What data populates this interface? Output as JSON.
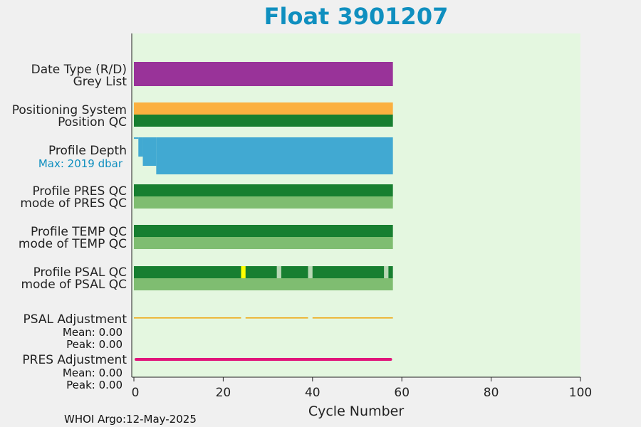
{
  "title": "Float 3901207",
  "footer": "WHOI Argo:12-May-2025",
  "colors": {
    "title": "#0f8fbf",
    "plot_bg": "#e4f7e0",
    "magenta": "#993399",
    "orange": "#fbb040",
    "dark_green": "#177f30",
    "light_green": "#7fbd71",
    "blue": "#41a9d2",
    "max_label": "#0f8fbf",
    "yellow": "#ffff00",
    "psal_gap": "#b9d8b5",
    "psal_adj": "#f0a000",
    "pres_adj": "#e0157a"
  },
  "chart_data": {
    "type": "bar",
    "xlabel": "Cycle Number",
    "xlim": [
      0,
      100
    ],
    "xticks": [
      "0",
      "20",
      "40",
      "60",
      "80",
      "100"
    ],
    "rows": [
      {
        "label": "Date Type (R/D)",
        "cycles": [
          0,
          58
        ],
        "color": "magenta"
      },
      {
        "label": "Grey List",
        "cycles": [
          0,
          58
        ],
        "color": "magenta"
      },
      {
        "label": "Positioning System",
        "cycles": [
          0,
          58
        ],
        "color": "orange"
      },
      {
        "label": "Position QC",
        "cycles": [
          0,
          58
        ],
        "color": "dark_green"
      },
      {
        "label": "Profile Depth",
        "max_label": "Max: 2019 dbar",
        "max_dbar": 2019,
        "depth_steps": [
          {
            "from": 0,
            "to": 1,
            "level": 0.04
          },
          {
            "from": 1,
            "to": 2,
            "level": 0.52
          },
          {
            "from": 2,
            "to": 5,
            "level": 0.77
          },
          {
            "from": 5,
            "to": 58,
            "level": 1.0
          }
        ]
      },
      {
        "label": "Profile PRES QC",
        "cycles": [
          0,
          58
        ],
        "color": "dark_green"
      },
      {
        "label": "mode of PRES QC",
        "cycles": [
          0,
          58
        ],
        "color": "light_green"
      },
      {
        "label": "Profile TEMP QC",
        "cycles": [
          0,
          58
        ],
        "color": "dark_green"
      },
      {
        "label": "mode of TEMP QC",
        "cycles": [
          0,
          58
        ],
        "color": "light_green"
      },
      {
        "label": "Profile PSAL QC",
        "cycles": [
          0,
          58
        ],
        "color": "dark_green",
        "flags": [
          {
            "from": 24,
            "to": 25,
            "color": "yellow"
          },
          {
            "from": 32,
            "to": 33,
            "color": "psal_gap"
          },
          {
            "from": 39,
            "to": 40,
            "color": "psal_gap"
          },
          {
            "from": 56,
            "to": 57,
            "color": "psal_gap"
          }
        ]
      },
      {
        "label": "mode of PSAL QC",
        "cycles": [
          0,
          58
        ],
        "color": "light_green"
      },
      {
        "label": "PSAL Adjustment",
        "mean_label": "Mean: 0.00",
        "peak_label": "Peak: 0.00",
        "segments": [
          [
            0,
            24
          ],
          [
            25,
            39
          ],
          [
            40,
            58
          ]
        ],
        "color": "psal_adj"
      },
      {
        "label": "PRES Adjustment",
        "mean_label": "Mean: 0.00",
        "peak_label": "Peak: 0.00",
        "segments": [
          [
            0,
            57.5
          ]
        ],
        "color": "pres_adj"
      }
    ]
  }
}
